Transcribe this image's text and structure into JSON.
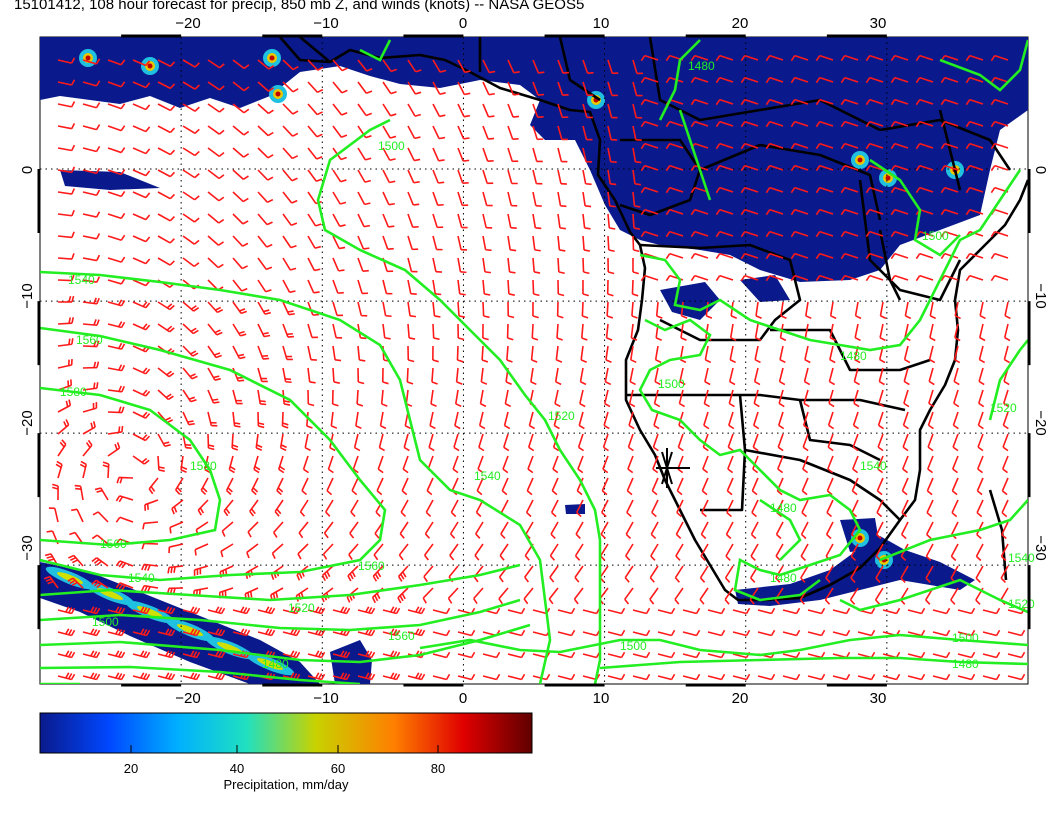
{
  "title": "15101412, 108 hour forecast for precip, 850 mb Z, and winds (knots) -- NASA GEOS5",
  "colors": {
    "precip_base": "#0a1a8c",
    "contour": "#22ee22",
    "barb": "#ff1a1a",
    "land_border": "#000000",
    "grid": "#000000"
  },
  "map": {
    "lon_range": [
      -30,
      40
    ],
    "lat_range": [
      -39,
      10
    ],
    "lon_ticks": [
      -20,
      -10,
      0,
      10,
      20,
      30
    ],
    "lat_ticks": [
      0,
      -10,
      -20,
      -30
    ],
    "lon_tick_labels": [
      "−20",
      "−10",
      "0",
      "10",
      "20",
      "30"
    ],
    "lat_tick_labels": [
      "0",
      "−10",
      "−20",
      "−30"
    ],
    "gridlines": "dotted"
  },
  "contours": {
    "units": "m",
    "labels": [
      "1500",
      "1540",
      "1560",
      "1580",
      "1560",
      "1540",
      "1520",
      "1500",
      "1480",
      "1520",
      "1540",
      "1560",
      "1580",
      "1560",
      "1540",
      "1520",
      "1500",
      "1480",
      "1480",
      "1480",
      "1480",
      "1500",
      "1500",
      "1500",
      "1480",
      "1520",
      "1540"
    ]
  },
  "colorbar": {
    "label": "Precipitation, mm/day",
    "ticks": [
      "20",
      "40",
      "60",
      "80"
    ],
    "range": [
      0,
      100
    ],
    "colormap": [
      "#0a1a8c",
      "#0047ff",
      "#00b0ff",
      "#20e0c0",
      "#c8d200",
      "#ff7f00",
      "#e00000",
      "#600000"
    ]
  }
}
